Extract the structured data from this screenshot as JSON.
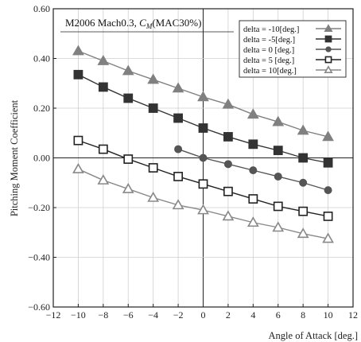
{
  "chart_data": {
    "type": "line",
    "title_main": "M2006  Mach0.3, ",
    "title_sym": "C",
    "title_sub": "M",
    "title_tail": "(MAC30%)",
    "xlabel": "Angle of Attack [deg.]",
    "ylabel": "Pitching Moment Coefficient",
    "xlim": [
      -12,
      12
    ],
    "ylim": [
      -0.6,
      0.6
    ],
    "xticks": [
      -12,
      -10,
      -8,
      -6,
      -4,
      -2,
      0,
      2,
      4,
      6,
      8,
      10,
      12
    ],
    "xtick_labels": [
      "−12",
      "−10",
      "−8",
      "−6",
      "−4",
      "−2",
      "0",
      "2",
      "4",
      "6",
      "8",
      "10",
      "12"
    ],
    "yticks": [
      -0.6,
      -0.4,
      -0.2,
      0.0,
      0.2,
      0.4,
      0.6
    ],
    "ytick_labels": [
      "−0.60",
      "−0.40",
      "−0.20",
      "0.00",
      "0.20",
      "0.40",
      "0.60"
    ],
    "grid": true,
    "legend_position": "top-right",
    "series": [
      {
        "name": "delta = -10[deg.]",
        "marker": "triangle-filled",
        "color": "#808080",
        "x": [
          -10,
          -8,
          -6,
          -4,
          -2,
          0,
          2,
          4,
          6,
          8,
          10
        ],
        "y": [
          0.43,
          0.39,
          0.35,
          0.315,
          0.28,
          0.245,
          0.215,
          0.175,
          0.145,
          0.11,
          0.085
        ]
      },
      {
        "name": "delta =  -5[deg.]",
        "marker": "square-filled",
        "color": "#333333",
        "x": [
          -10,
          -8,
          -6,
          -4,
          -2,
          0,
          2,
          4,
          6,
          8,
          10
        ],
        "y": [
          0.335,
          0.285,
          0.24,
          0.2,
          0.16,
          0.12,
          0.085,
          0.055,
          0.03,
          0.0,
          -0.02
        ]
      },
      {
        "name": "delta =   0 [deg.]",
        "marker": "circle-filled",
        "color": "#555555",
        "x": [
          -2,
          0,
          2,
          4,
          6,
          8,
          10
        ],
        "y": [
          0.035,
          0.0,
          -0.025,
          -0.05,
          -0.075,
          -0.1,
          -0.13
        ]
      },
      {
        "name": "delta =   5 [deg.]",
        "marker": "square-open",
        "color": "#222222",
        "x": [
          -10,
          -8,
          -6,
          -4,
          -2,
          0,
          2,
          4,
          6,
          8,
          10
        ],
        "y": [
          0.07,
          0.035,
          -0.005,
          -0.04,
          -0.075,
          -0.105,
          -0.135,
          -0.165,
          -0.195,
          -0.215,
          -0.235
        ]
      },
      {
        "name": "delta =  10[deg.]",
        "marker": "triangle-open",
        "color": "#888888",
        "x": [
          -10,
          -8,
          -6,
          -4,
          -2,
          0,
          2,
          4,
          6,
          8,
          10
        ],
        "y": [
          -0.045,
          -0.09,
          -0.125,
          -0.16,
          -0.19,
          -0.21,
          -0.235,
          -0.26,
          -0.28,
          -0.305,
          -0.325
        ]
      }
    ]
  }
}
